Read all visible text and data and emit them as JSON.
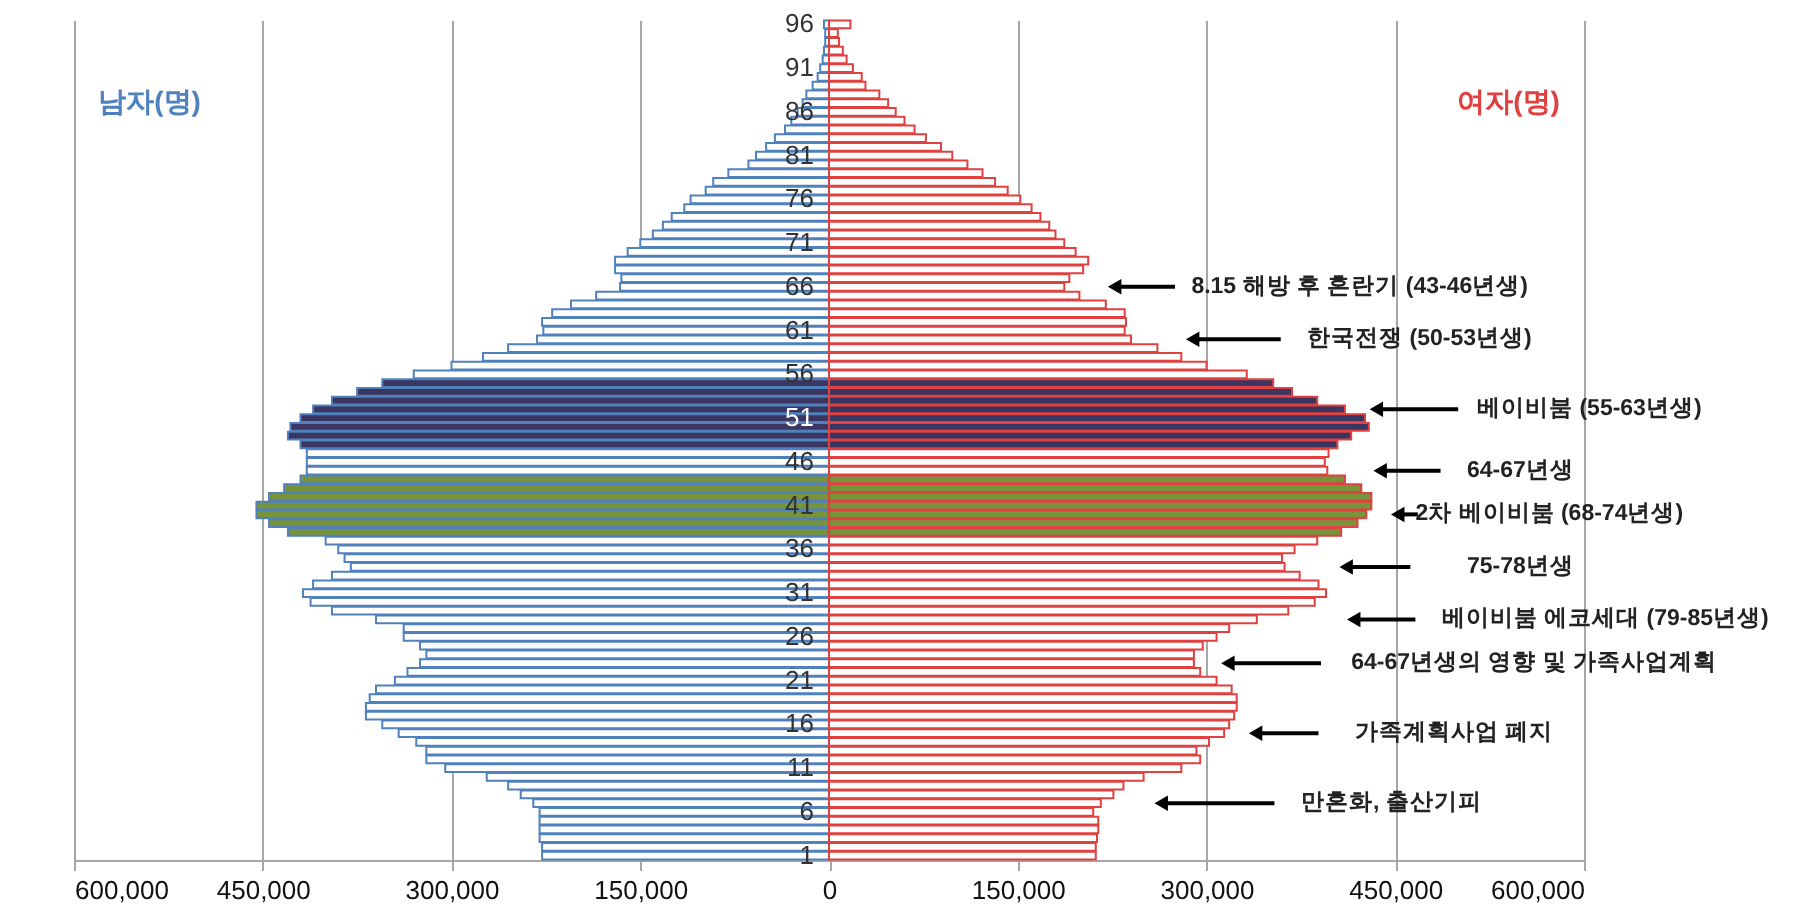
{
  "chart_data": {
    "type": "bar",
    "orientation": "horizontal",
    "grid": "x",
    "stacked": true,
    "categories": [
      "96",
      null,
      null,
      null,
      null,
      "91",
      null,
      null,
      null,
      null,
      "86",
      null,
      null,
      null,
      null,
      "81",
      null,
      null,
      null,
      null,
      "76",
      null,
      null,
      null,
      null,
      "71",
      null,
      null,
      null,
      null,
      "66",
      null,
      null,
      null,
      null,
      "61",
      null,
      null,
      null,
      null,
      "56",
      null,
      null,
      null,
      null,
      "51",
      null,
      null,
      null,
      null,
      "46",
      null,
      null,
      null,
      null,
      "41",
      null,
      null,
      null,
      null,
      "36",
      null,
      null,
      null,
      null,
      "31",
      null,
      null,
      null,
      null,
      "26",
      null,
      null,
      null,
      null,
      "21",
      null,
      null,
      null,
      null,
      "16",
      null,
      null,
      null,
      null,
      "11",
      null,
      null,
      null,
      null,
      "6",
      null,
      null,
      null,
      null,
      "1"
    ],
    "xlim": [
      -600000,
      600000
    ],
    "xticks": [
      {
        "value": -600000,
        "label": "600,000"
      },
      {
        "value": -450000,
        "label": "450,000"
      },
      {
        "value": -300000,
        "label": "300,000"
      },
      {
        "value": -150000,
        "label": "150,000"
      },
      0,
      {
        "value": 150000,
        "label": "150,000"
      },
      {
        "value": 300000,
        "label": "300,000"
      },
      {
        "value": 450000,
        "label": "450,000"
      },
      {
        "value": 600000,
        "label": "600,000"
      }
    ],
    "series": [
      {
        "name": "남자(명)",
        "color": "#4f81bd",
        "values": [
          -4000,
          -3000,
          -3000,
          -4000,
          -5000,
          -7000,
          -9000,
          -13000,
          -18000,
          -21000,
          -25000,
          -30000,
          -35000,
          -43000,
          -50000,
          -58000,
          -64000,
          -80000,
          -92000,
          -98000,
          -110000,
          -115000,
          -125000,
          -132000,
          -140000,
          -150000,
          -160000,
          -170000,
          -170000,
          -165000,
          -166000,
          -185000,
          -205000,
          -220000,
          -228000,
          -227000,
          -232000,
          -255000,
          -275000,
          -300000,
          -330000,
          -355000,
          -375000,
          -395000,
          -410000,
          -420000,
          -428000,
          -430000,
          -420000,
          -415000,
          -415000,
          -415000,
          -420000,
          -433000,
          -445000,
          -455000,
          -455000,
          -445000,
          -430000,
          -400000,
          -390000,
          -385000,
          -380000,
          -395000,
          -410000,
          -418000,
          -412000,
          -395000,
          -360000,
          -338000,
          -338000,
          -325000,
          -320000,
          -325000,
          -335000,
          -345000,
          -360000,
          -365000,
          -368000,
          -368000,
          -355000,
          -342000,
          -328000,
          -320000,
          -320000,
          -305000,
          -272000,
          -255000,
          -245000,
          -235000,
          -230000,
          -230000,
          -230000,
          -230000,
          -228000,
          -228000
        ],
        "colors": [
          "#ffffff",
          "#ffffff",
          "#ffffff",
          "#ffffff",
          "#ffffff",
          "#ffffff",
          "#ffffff",
          "#ffffff",
          "#ffffff",
          "#ffffff",
          "#ffffff",
          "#ffffff",
          "#ffffff",
          "#ffffff",
          "#ffffff",
          "#ffffff",
          "#ffffff",
          "#ffffff",
          "#ffffff",
          "#ffffff",
          "#ffffff",
          "#ffffff",
          "#ffffff",
          "#ffffff",
          "#ffffff",
          "#ffffff",
          "#ffffff",
          "#ffffff",
          "#ffffff",
          "#ffffff",
          "#ffffff",
          "#ffffff",
          "#ffffff",
          "#ffffff",
          "#ffffff",
          "#ffffff",
          "#ffffff",
          "#ffffff",
          "#ffffff",
          "#ffffff",
          "#ffffff",
          "#3b3561",
          "#3b3561",
          "#3b3561",
          "#3b3561",
          "#3b3561",
          "#3b3561",
          "#3b3561",
          "#3b3561",
          "#ffffff",
          "#ffffff",
          "#ffffff",
          "#77933c",
          "#77933c",
          "#77933c",
          "#77933c",
          "#77933c",
          "#77933c",
          "#77933c",
          "#ffffff",
          "#ffffff",
          "#ffffff",
          "#ffffff",
          "#ffffff",
          "#ffffff",
          "#ffffff",
          "#ffffff",
          "#ffffff",
          "#ffffff",
          "#ffffff",
          "#ffffff",
          "#ffffff",
          "#ffffff",
          "#ffffff",
          "#ffffff",
          "#ffffff",
          "#ffffff",
          "#ffffff",
          "#ffffff",
          "#ffffff",
          "#ffffff",
          "#ffffff",
          "#ffffff",
          "#ffffff",
          "#ffffff",
          "#ffffff",
          "#ffffff",
          "#ffffff",
          "#ffffff",
          "#ffffff",
          "#ffffff",
          "#ffffff",
          "#ffffff",
          "#ffffff",
          "#ffffff",
          "#ffffff"
        ]
      },
      {
        "name": "여자(명)",
        "color": "#e0403f",
        "values": [
          17000,
          7000,
          8000,
          11000,
          14000,
          19000,
          26000,
          29000,
          40000,
          47000,
          53000,
          60000,
          68000,
          77000,
          89000,
          98000,
          110000,
          122000,
          132000,
          142000,
          152000,
          161000,
          168000,
          175000,
          180000,
          187000,
          196000,
          206000,
          202000,
          191000,
          187000,
          199000,
          220000,
          235000,
          236000,
          235000,
          240000,
          261000,
          280000,
          300000,
          332000,
          353000,
          368000,
          388000,
          410000,
          426000,
          429000,
          415000,
          404000,
          397000,
          394000,
          396000,
          410000,
          423000,
          431000,
          431000,
          427000,
          420000,
          407000,
          388000,
          370000,
          360000,
          362000,
          374000,
          389000,
          395000,
          386000,
          365000,
          340000,
          318000,
          308000,
          297000,
          290000,
          290000,
          295000,
          308000,
          320000,
          324000,
          324000,
          322000,
          318000,
          314000,
          302000,
          292000,
          295000,
          280000,
          250000,
          234000,
          226000,
          216000,
          210000,
          214000,
          214000,
          213000,
          212000,
          212000
        ],
        "colors": [
          "#ffffff",
          "#ffffff",
          "#ffffff",
          "#ffffff",
          "#ffffff",
          "#ffffff",
          "#ffffff",
          "#ffffff",
          "#ffffff",
          "#ffffff",
          "#ffffff",
          "#ffffff",
          "#ffffff",
          "#ffffff",
          "#ffffff",
          "#ffffff",
          "#ffffff",
          "#ffffff",
          "#ffffff",
          "#ffffff",
          "#ffffff",
          "#ffffff",
          "#ffffff",
          "#ffffff",
          "#ffffff",
          "#ffffff",
          "#ffffff",
          "#ffffff",
          "#ffffff",
          "#ffffff",
          "#ffffff",
          "#ffffff",
          "#ffffff",
          "#ffffff",
          "#ffffff",
          "#ffffff",
          "#ffffff",
          "#ffffff",
          "#ffffff",
          "#ffffff",
          "#ffffff",
          "#3b3561",
          "#3b3561",
          "#3b3561",
          "#3b3561",
          "#3b3561",
          "#3b3561",
          "#3b3561",
          "#3b3561",
          "#ffffff",
          "#ffffff",
          "#ffffff",
          "#77933c",
          "#77933c",
          "#77933c",
          "#77933c",
          "#77933c",
          "#77933c",
          "#77933c",
          "#ffffff",
          "#ffffff",
          "#ffffff",
          "#ffffff",
          "#ffffff",
          "#ffffff",
          "#ffffff",
          "#ffffff",
          "#ffffff",
          "#ffffff",
          "#ffffff",
          "#ffffff",
          "#ffffff",
          "#ffffff",
          "#ffffff",
          "#ffffff",
          "#ffffff",
          "#ffffff",
          "#ffffff",
          "#ffffff",
          "#ffffff",
          "#ffffff",
          "#ffffff",
          "#ffffff",
          "#ffffff",
          "#ffffff",
          "#ffffff",
          "#ffffff",
          "#ffffff",
          "#ffffff",
          "#ffffff",
          "#ffffff",
          "#ffffff",
          "#ffffff",
          "#ffffff",
          "#ffffff",
          "#ffffff"
        ]
      }
    ],
    "annotations": [
      {
        "text": "8.15 해방 후 혼란기 (43-46년생)",
        "x": 227000
      },
      {
        "text": "한국전쟁 (50-53년생)",
        "x": 289000
      },
      {
        "text": "베이비붐 (55-63년생)",
        "x": 435000
      },
      {
        "text": "64-67년생",
        "x": 438000
      },
      {
        "text": "2차 베이비붐 (68-74년생)",
        "x": 452000
      },
      "75-78년생",
      {
        "text": "베이비붐 에코세대 (79-85년생)",
        "x": 417000
      },
      "64-67년생의 영향 및 가족사업계획",
      "가족계획사업 폐지",
      {
        "text": "만혼화, 출산기피",
        "x": 264000
      }
    ]
  }
}
